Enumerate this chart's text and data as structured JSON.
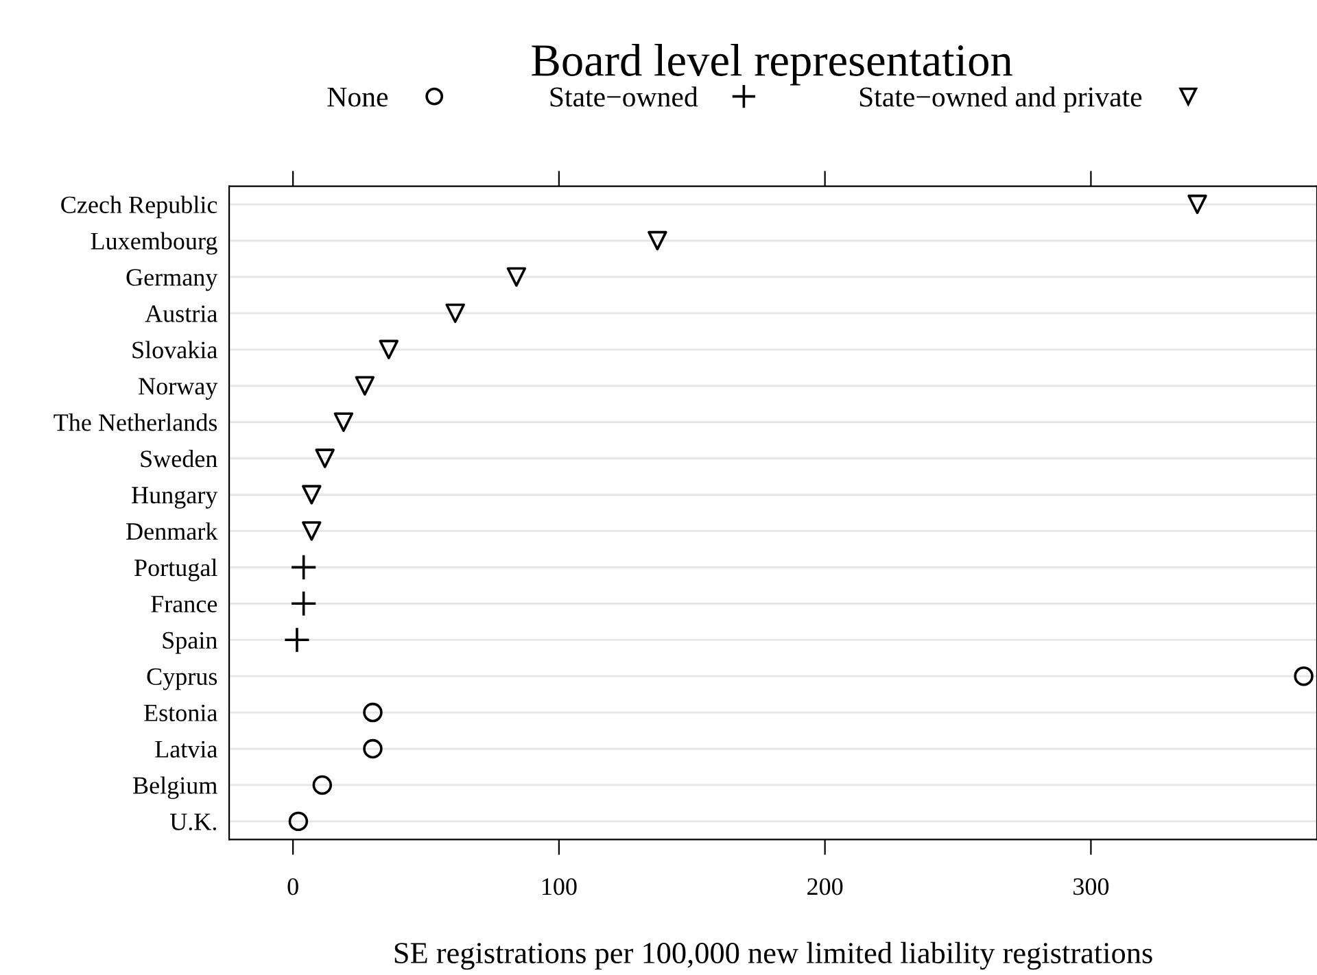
{
  "chart_data": {
    "type": "scatter",
    "orientation": "horizontal",
    "title": "Board level representation",
    "xlabel": "SE registrations per 100,000 new limited liability registrations",
    "categories": [
      "Czech Republic",
      "Luxembourg",
      "Germany",
      "Austria",
      "Slovakia",
      "Norway",
      "The Netherlands",
      "Sweden",
      "Hungary",
      "Denmark",
      "Portugal",
      "France",
      "Spain",
      "Cyprus",
      "Estonia",
      "Latvia",
      "Belgium",
      "U.K."
    ],
    "series": [
      {
        "name": "None",
        "color": "#000000",
        "marker": "circle",
        "values": [
          null,
          null,
          null,
          null,
          null,
          null,
          null,
          null,
          null,
          null,
          null,
          null,
          null,
          380,
          30,
          30,
          11,
          2
        ]
      },
      {
        "name": "State−owned",
        "color": "#000000",
        "marker": "cross",
        "values": [
          null,
          null,
          null,
          null,
          null,
          null,
          null,
          null,
          null,
          null,
          4,
          4,
          1.5,
          null,
          null,
          null,
          null,
          null
        ]
      },
      {
        "name": "State−owned and private",
        "color": "#000000",
        "marker": "triangle",
        "values": [
          340,
          137,
          84,
          61,
          36,
          27,
          19,
          12,
          7,
          7,
          null,
          null,
          null,
          null,
          null,
          null,
          null,
          null
        ]
      }
    ],
    "xlim": [
      -24,
      385
    ],
    "xticks": [
      0,
      100,
      200,
      300
    ],
    "grid": "y",
    "legend": "top"
  }
}
